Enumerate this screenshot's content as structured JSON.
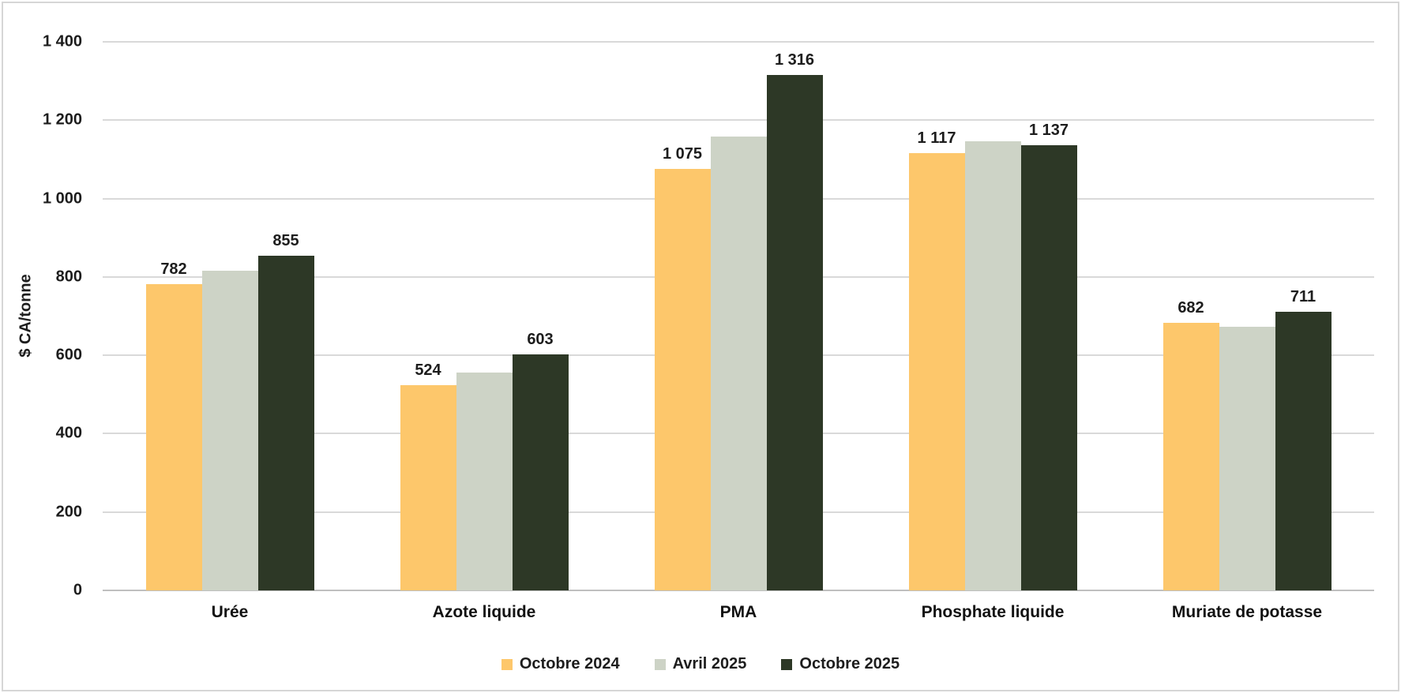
{
  "chart_data": {
    "type": "bar",
    "title": "",
    "ylabel": "$ CA/tonne",
    "ylim": [
      0,
      1400
    ],
    "ytick_step": 200,
    "yticks": [
      {
        "value": 0,
        "label": "0"
      },
      {
        "value": 200,
        "label": "200"
      },
      {
        "value": 400,
        "label": "400"
      },
      {
        "value": 600,
        "label": "600"
      },
      {
        "value": 800,
        "label": "800"
      },
      {
        "value": 1000,
        "label": "1 000"
      },
      {
        "value": 1200,
        "label": "1 200"
      },
      {
        "value": 1400,
        "label": "1 400"
      }
    ],
    "grid": true,
    "legend_position": "bottom",
    "categories": [
      "Urée",
      "Azote liquide",
      "PMA",
      "Phosphate liquide",
      "Muriate de potasse"
    ],
    "series": [
      {
        "name": "Octobre 2024",
        "color": "#FDC76B",
        "labels_shown": true,
        "values": [
          782,
          524,
          1075,
          1117,
          682
        ],
        "data_labels": [
          "782",
          "524",
          "1 075",
          "1 117",
          "682"
        ]
      },
      {
        "name": "Avril 2025",
        "color": "#CDD3C6",
        "labels_shown": false,
        "values": [
          816,
          557,
          1158,
          1146,
          673
        ],
        "data_labels": null
      },
      {
        "name": "Octobre 2025",
        "color": "#2D3826",
        "labels_shown": true,
        "values": [
          855,
          603,
          1316,
          1137,
          711
        ],
        "data_labels": [
          "855",
          "603",
          "1 316",
          "1 137",
          "711"
        ]
      }
    ],
    "colors": {
      "gridline": "#D9D9D9",
      "axis_line": "#BFBFBF",
      "text": "#1D1D1D",
      "background": "#FFFFFF",
      "border": "#D6D6D6"
    }
  }
}
